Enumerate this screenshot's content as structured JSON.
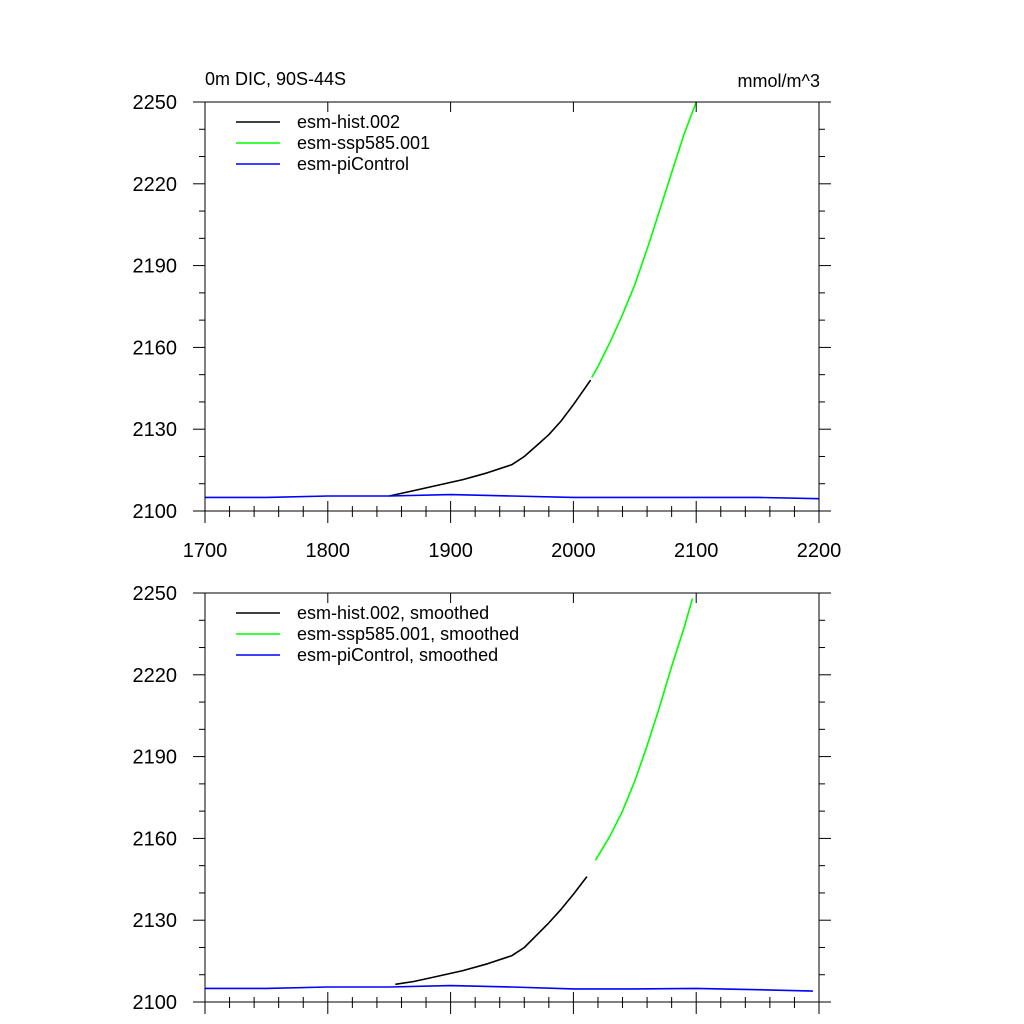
{
  "chart_data": [
    {
      "type": "line",
      "title_left": "0m DIC, 90S-44S",
      "title_right": "mmol/m^3",
      "xlim": [
        1700,
        2200
      ],
      "ylim": [
        2100,
        2250
      ],
      "x_ticks": [
        1700,
        1800,
        1900,
        2000,
        2100,
        2200
      ],
      "x_tick_labels": [
        "1700",
        "1800",
        "1900",
        "2000",
        "2100",
        "2200"
      ],
      "y_ticks": [
        2100,
        2130,
        2160,
        2190,
        2220,
        2250
      ],
      "y_tick_labels": [
        "2100",
        "2130",
        "2160",
        "2190",
        "2220",
        "2250"
      ],
      "legend_position": "top-left",
      "series": [
        {
          "name": "esm-hist.002",
          "color": "#000000",
          "x": [
            1850,
            1870,
            1890,
            1910,
            1930,
            1950,
            1960,
            1970,
            1980,
            1990,
            2000,
            2014
          ],
          "y": [
            2105.5,
            2107.5,
            2109.5,
            2111.5,
            2114,
            2117,
            2120,
            2124,
            2128,
            2133,
            2139,
            2148
          ]
        },
        {
          "name": "esm-ssp585.001",
          "color": "#00ff00",
          "x": [
            2015,
            2020,
            2030,
            2040,
            2050,
            2060,
            2070,
            2080,
            2090,
            2100
          ],
          "y": [
            2149,
            2153,
            2162,
            2172,
            2183,
            2196,
            2210,
            2224,
            2238,
            2250
          ]
        },
        {
          "name": "esm-piControl",
          "color": "#0000ff",
          "x": [
            1700,
            1750,
            1800,
            1850,
            1900,
            1950,
            2000,
            2050,
            2100,
            2150,
            2200
          ],
          "y": [
            2105,
            2105,
            2105.5,
            2105.5,
            2106,
            2105.5,
            2105,
            2105,
            2105,
            2105,
            2104.5
          ]
        }
      ]
    },
    {
      "type": "line",
      "xlim": [
        1700,
        2200
      ],
      "ylim": [
        2100,
        2250
      ],
      "x_ticks": [
        1700,
        1800,
        1900,
        2000,
        2100,
        2200
      ],
      "y_ticks": [
        2100,
        2130,
        2160,
        2190,
        2220,
        2250
      ],
      "y_tick_labels": [
        "2100",
        "2130",
        "2160",
        "2190",
        "2220",
        "2250"
      ],
      "legend_position": "top-left",
      "series": [
        {
          "name": "esm-hist.002, smoothed",
          "color": "#000000",
          "x": [
            1855,
            1870,
            1890,
            1910,
            1930,
            1950,
            1960,
            1970,
            1980,
            1990,
            2000,
            2011
          ],
          "y": [
            2106.5,
            2107.5,
            2109.5,
            2111.5,
            2114,
            2117,
            2120,
            2124.5,
            2129,
            2134,
            2139.5,
            2146
          ]
        },
        {
          "name": "esm-ssp585.001, smoothed",
          "color": "#00ff00",
          "x": [
            2018,
            2030,
            2040,
            2050,
            2060,
            2070,
            2080,
            2090,
            2097
          ],
          "y": [
            2152,
            2161,
            2170,
            2181,
            2194,
            2208,
            2223,
            2237,
            2248
          ]
        },
        {
          "name": "esm-piControl, smoothed",
          "color": "#0000ff",
          "x": [
            1700,
            1750,
            1800,
            1850,
            1900,
            1950,
            2000,
            2050,
            2100,
            2150,
            2195
          ],
          "y": [
            2105,
            2105,
            2105.5,
            2105.5,
            2106,
            2105.5,
            2104.8,
            2104.8,
            2105,
            2104.5,
            2104
          ]
        }
      ]
    }
  ]
}
